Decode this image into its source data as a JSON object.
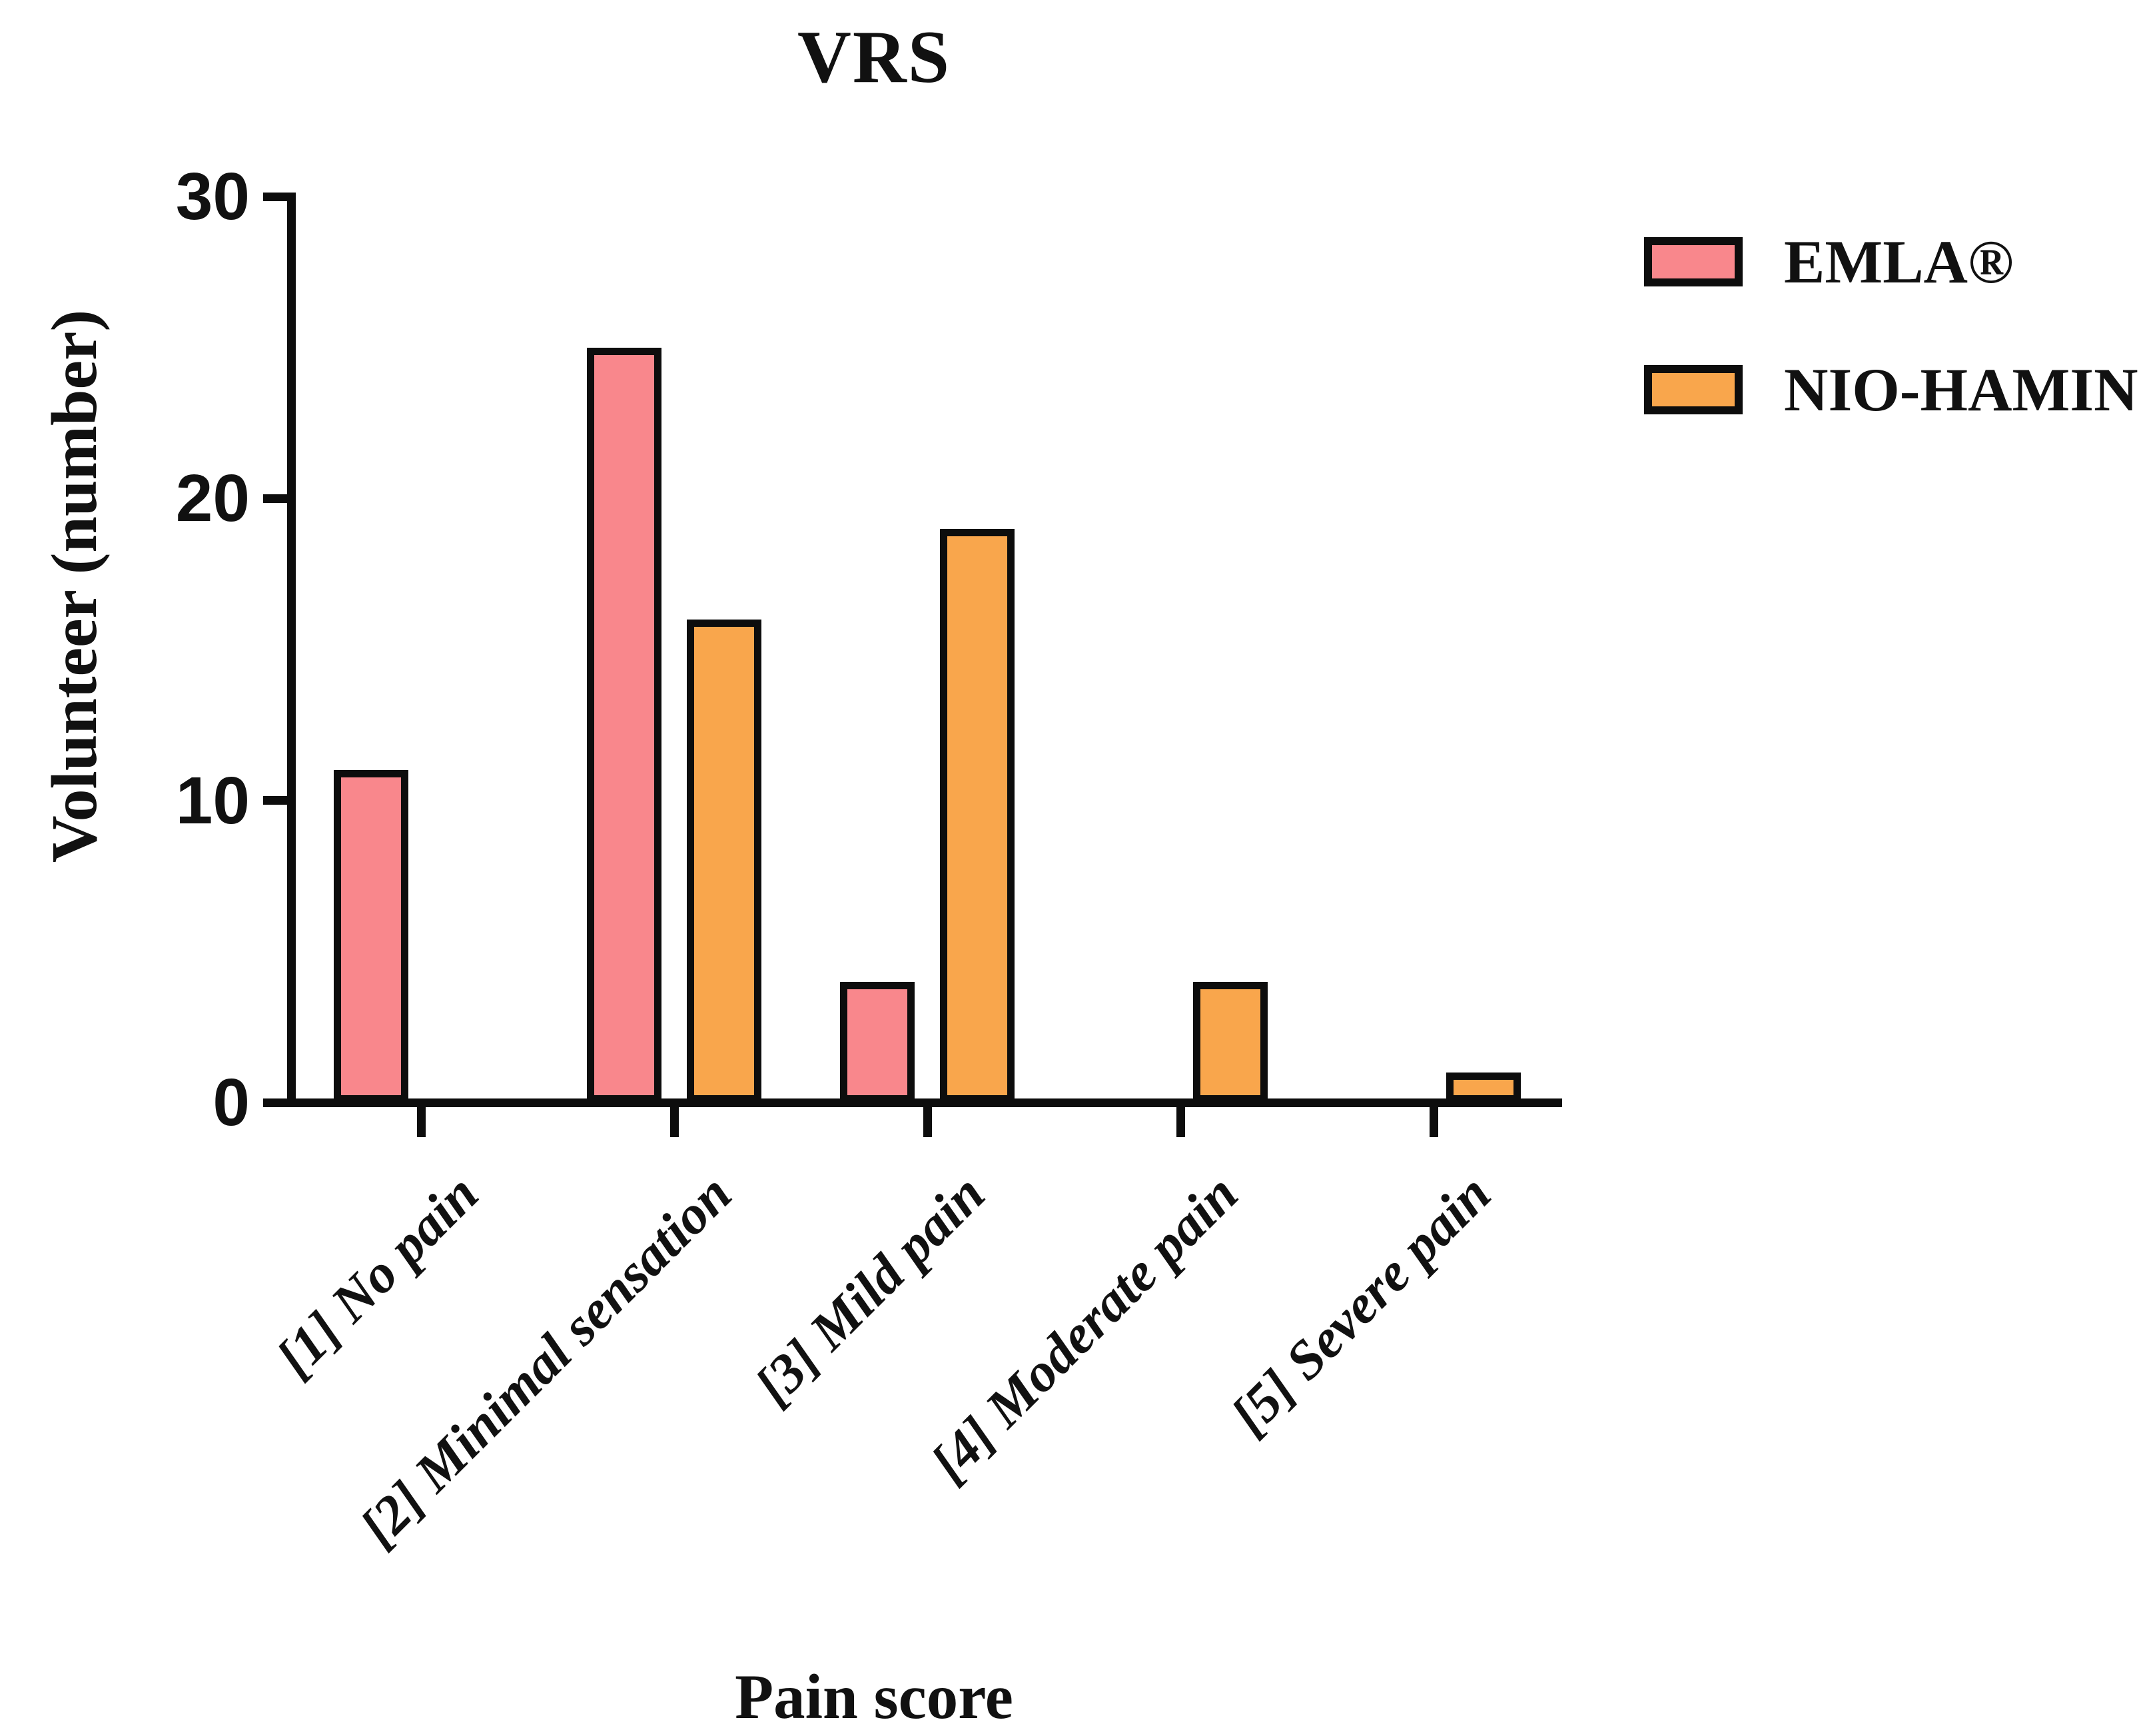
{
  "figure": {
    "background": "#ffffff",
    "axis_color": "#0d0d0d",
    "text_color": "#111111"
  },
  "chart_data": {
    "type": "bar",
    "title": "VRS",
    "xlabel": "Pain score",
    "ylabel": "Volunteer (number)",
    "ylim": [
      0,
      30
    ],
    "yticks": [
      0,
      10,
      20,
      30
    ],
    "grid": false,
    "legend_position": "top-right",
    "categories": [
      "[1] No pain",
      "[2] Minimal sensation",
      "[3] Mild pain",
      "[4] Moderate pain",
      "[5] Severe pain"
    ],
    "series": [
      {
        "name": "EMLA®",
        "color": "#F9878C",
        "values": [
          11,
          25,
          4,
          0,
          0
        ]
      },
      {
        "name": "NIO-HAMIN",
        "color": "#F9A64C",
        "values": [
          0,
          16,
          19,
          4,
          1
        ]
      }
    ]
  }
}
